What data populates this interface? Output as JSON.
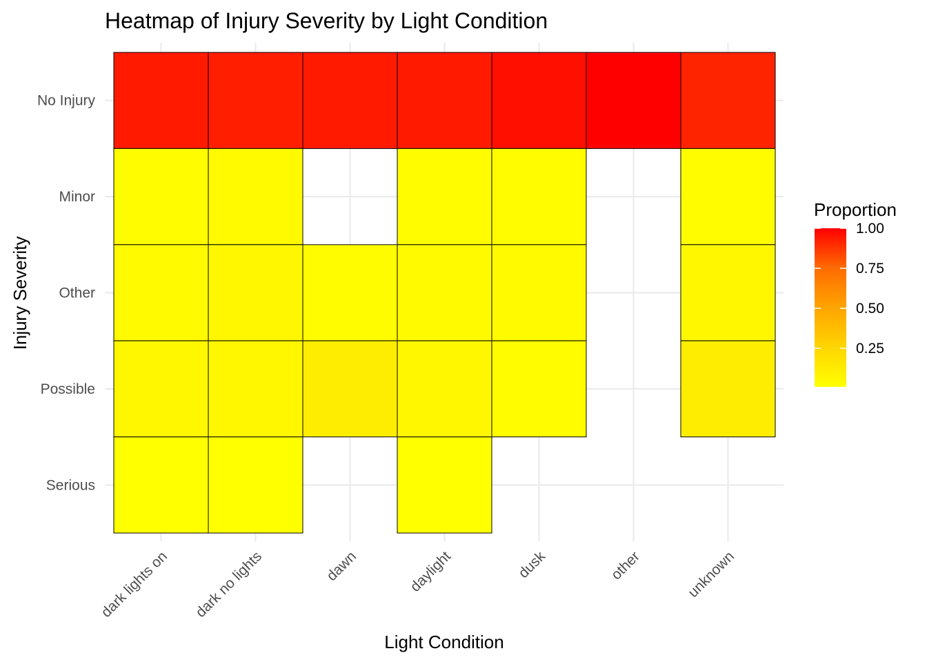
{
  "chart_data": {
    "type": "heatmap",
    "title": "Heatmap of Injury Severity by Light Condition",
    "xlabel": "Light Condition",
    "ylabel": "Injury Severity",
    "x_categories": [
      "dark lights on",
      "dark no lights",
      "dawn",
      "daylight",
      "dusk",
      "other",
      "unknown"
    ],
    "y_categories": [
      "No Injury",
      "Minor",
      "Other",
      "Possible",
      "Serious"
    ],
    "cells": [
      {
        "x": "dark lights on",
        "y": "No Injury",
        "value": 0.9
      },
      {
        "x": "dark no lights",
        "y": "No Injury",
        "value": 0.88
      },
      {
        "x": "dawn",
        "y": "No Injury",
        "value": 0.9
      },
      {
        "x": "daylight",
        "y": "No Injury",
        "value": 0.9
      },
      {
        "x": "dusk",
        "y": "No Injury",
        "value": 0.94
      },
      {
        "x": "other",
        "y": "No Injury",
        "value": 1.0
      },
      {
        "x": "unknown",
        "y": "No Injury",
        "value": 0.86
      },
      {
        "x": "dark lights on",
        "y": "Minor",
        "value": 0.02
      },
      {
        "x": "dark no lights",
        "y": "Minor",
        "value": 0.03
      },
      {
        "x": "daylight",
        "y": "Minor",
        "value": 0.02
      },
      {
        "x": "dusk",
        "y": "Minor",
        "value": 0.02
      },
      {
        "x": "unknown",
        "y": "Minor",
        "value": 0.02
      },
      {
        "x": "dark lights on",
        "y": "Other",
        "value": 0.03
      },
      {
        "x": "dark no lights",
        "y": "Other",
        "value": 0.04
      },
      {
        "x": "dawn",
        "y": "Other",
        "value": 0.02
      },
      {
        "x": "daylight",
        "y": "Other",
        "value": 0.03
      },
      {
        "x": "dusk",
        "y": "Other",
        "value": 0.03
      },
      {
        "x": "unknown",
        "y": "Other",
        "value": 0.04
      },
      {
        "x": "dark lights on",
        "y": "Possible",
        "value": 0.04
      },
      {
        "x": "dark no lights",
        "y": "Possible",
        "value": 0.04
      },
      {
        "x": "dawn",
        "y": "Possible",
        "value": 0.08
      },
      {
        "x": "daylight",
        "y": "Possible",
        "value": 0.04
      },
      {
        "x": "dusk",
        "y": "Possible",
        "value": 0.02
      },
      {
        "x": "unknown",
        "y": "Possible",
        "value": 0.08
      },
      {
        "x": "dark lights on",
        "y": "Serious",
        "value": 0.01
      },
      {
        "x": "dark no lights",
        "y": "Serious",
        "value": 0.01
      },
      {
        "x": "daylight",
        "y": "Serious",
        "value": 0.01
      }
    ],
    "legend": {
      "title": "Proportion",
      "breaks": [
        0.25,
        0.5,
        0.75,
        1.0
      ],
      "labels": [
        "0.25",
        "0.50",
        "0.75",
        "1.00"
      ],
      "range": [
        0.01,
        1.0
      ],
      "low_color": "#ffff00",
      "high_color": "#ff0000",
      "position": "right"
    },
    "grid": true,
    "tile_border_color": "#000000"
  }
}
